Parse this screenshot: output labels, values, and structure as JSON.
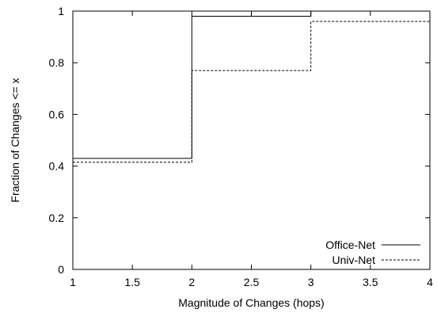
{
  "chart_data": {
    "type": "line",
    "line_shape": "step-post",
    "xlabel": "Magnitude of Changes (hops)",
    "ylabel": "Fraction of Changes <= x",
    "xlim": [
      1,
      4
    ],
    "ylim": [
      0,
      1
    ],
    "x_ticks": [
      {
        "value": 1,
        "label": "1"
      },
      {
        "value": 1.5,
        "label": "1.5"
      },
      {
        "value": 2,
        "label": "2"
      },
      {
        "value": 2.5,
        "label": "2.5"
      },
      {
        "value": 3,
        "label": "3"
      },
      {
        "value": 3.5,
        "label": "3.5"
      },
      {
        "value": 4,
        "label": "4"
      }
    ],
    "y_ticks": [
      {
        "value": 0,
        "label": "0"
      },
      {
        "value": 0.2,
        "label": "0.2"
      },
      {
        "value": 0.4,
        "label": "0.4"
      },
      {
        "value": 0.6,
        "label": "0.6"
      },
      {
        "value": 0.8,
        "label": "0.8"
      },
      {
        "value": 1,
        "label": "1"
      }
    ],
    "grid": false,
    "legend_position": "bottom-right",
    "series": [
      {
        "name": "Office-Net",
        "style": "solid",
        "color": "#000000",
        "x": [
          1,
          2,
          3,
          4
        ],
        "y": [
          0.43,
          0.98,
          1.0,
          1.0
        ]
      },
      {
        "name": "Univ-Net",
        "style": "dashed",
        "color": "#000000",
        "x": [
          1,
          2,
          3,
          4
        ],
        "y": [
          0.415,
          0.77,
          0.96,
          0.96
        ]
      }
    ]
  }
}
